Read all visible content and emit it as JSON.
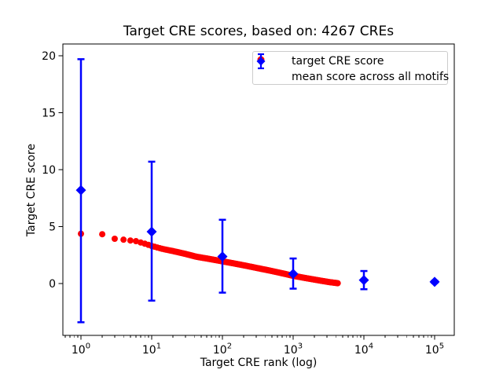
{
  "figure": {
    "background": "#ffffff"
  },
  "chart_data": {
    "type": "scatter",
    "title": "Target CRE scores, based on: 4267 CREs",
    "xlabel": "Target CRE rank (log)",
    "ylabel": "Target CRE score",
    "x_scale": "log",
    "xlim": [
      0.55,
      190000
    ],
    "ylim": [
      -4.55,
      21.05
    ],
    "x_tick_exponents": [
      0,
      1,
      2,
      3,
      4,
      5
    ],
    "y_ticks": [
      0,
      5,
      10,
      15,
      20
    ],
    "grid": false,
    "legend_position": "upper right",
    "n_cres": 4267,
    "series": [
      {
        "name": "target CRE score",
        "marker": "circle",
        "color": "#ff0000",
        "n_points": 4267,
        "anchors": {
          "rank": [
            1,
            2,
            3,
            4,
            5,
            6,
            8,
            10,
            14,
            20,
            30,
            43,
            60,
            100,
            150,
            220,
            316,
            500,
            700,
            1000,
            1500,
            2200,
            3200,
            4267
          ],
          "score": [
            4.37,
            4.33,
            3.93,
            3.85,
            3.78,
            3.72,
            3.5,
            3.3,
            3.05,
            2.85,
            2.6,
            2.35,
            2.2,
            1.95,
            1.75,
            1.55,
            1.35,
            1.1,
            0.9,
            0.68,
            0.48,
            0.3,
            0.13,
            0.03
          ]
        }
      },
      {
        "name": "mean score across all motifs",
        "marker": "diamond",
        "color": "#0000ff",
        "error_bars": true,
        "points": [
          {
            "x": 1,
            "mean": 8.2,
            "lo": -3.4,
            "hi": 19.7
          },
          {
            "x": 10,
            "mean": 4.55,
            "lo": -1.5,
            "hi": 10.7
          },
          {
            "x": 100,
            "mean": 2.37,
            "lo": -0.8,
            "hi": 5.6
          },
          {
            "x": 1000,
            "mean": 0.85,
            "lo": -0.45,
            "hi": 2.2
          },
          {
            "x": 10000,
            "mean": 0.3,
            "lo": -0.5,
            "hi": 1.1
          },
          {
            "x": 100000,
            "mean": 0.15,
            "lo": 0.05,
            "hi": 0.25
          }
        ]
      }
    ]
  }
}
